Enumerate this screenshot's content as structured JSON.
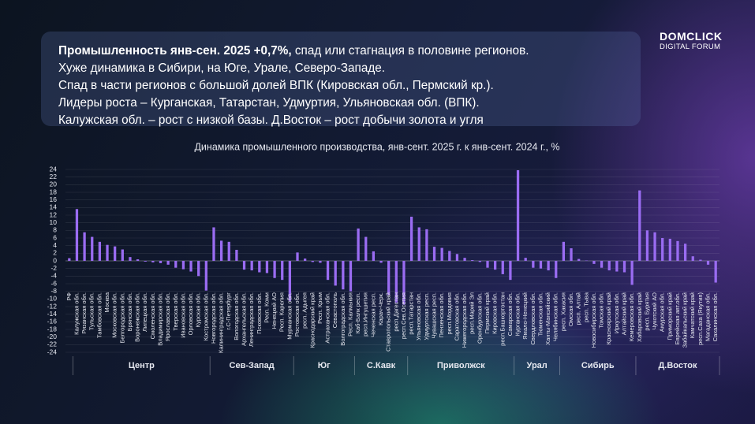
{
  "header": {
    "lead": "Промышленность янв-сен. 2025 +0,7%,",
    "lead_rest": "спад или стагнация в половине регионов.",
    "lines": [
      "Хуже динамика в Сибири, на Юге, Урале, Северо-Западе.",
      "Спад в части регионов с большой долей ВПК (Кировская обл., Пермский кр.).",
      "Лидеры роста – Курганская, Татарстан, Удмуртия, Ульяновская обл. (ВПК).",
      "Калужская обл. – рост с низкой базы. Д.Восток – рост добычи золота и угля"
    ]
  },
  "logo": {
    "brand": "DOMCLICK",
    "event": "DIGITAL FORUM"
  },
  "chart_data": {
    "type": "bar",
    "title": "Динамика промышленного производства, янв-сент. 2025 г. к янв-сент. 2024 г., %",
    "color": "#9a6cf2",
    "ylim": [
      -24,
      24
    ],
    "yticks": [
      -24,
      -22,
      -20,
      -18,
      -16,
      -14,
      -12,
      -10,
      -8,
      -6,
      -4,
      -2,
      0,
      2,
      4,
      6,
      8,
      10,
      12,
      14,
      16,
      18,
      20,
      22,
      24
    ],
    "grid": true,
    "categories": [
      "РФ"
    ],
    "values": [
      0.7
    ],
    "groups": [
      {
        "name": "Центр",
        "categories": [
          "Калужская обл.",
          "Рязанская обл.",
          "Тульская обл.",
          "Тамбовская обл.",
          "Москва",
          "Московская обл.",
          "Белгородская обл.",
          "Брянская обл.",
          "Воронежская обл.",
          "Липецкая обл.",
          "Смоленская обл.",
          "Владимирская обл.",
          "Ярославская обл.",
          "Тверская обл.",
          "Ивановская обл.",
          "Орловская обл.",
          "Курская обл.",
          "Костромская обл."
        ],
        "values": [
          13.6,
          7.5,
          6.3,
          5.0,
          4.2,
          3.8,
          3.0,
          1.0,
          0.4,
          -0.2,
          -0.4,
          -0.6,
          -1.0,
          -1.8,
          -2.2,
          -2.8,
          -4.0,
          -7.8
        ]
      },
      {
        "name": "Сев-Запад",
        "categories": [
          "Новгородская обл.",
          "Калининградская обл.",
          "г.С-Петербург",
          "Вологодская обл.",
          "Архангельская обл.",
          "Ленинградская обл.",
          "Псковская обл.",
          "Респ. Коми",
          "Ненецкий АО",
          "Респ. Карелия",
          "Мурманская обл."
        ],
        "values": [
          8.8,
          5.3,
          5.0,
          2.9,
          -2.3,
          -2.5,
          -3.0,
          -3.2,
          -4.5,
          -5.0,
          -10.5
        ]
      },
      {
        "name": "Юг",
        "categories": [
          "Ростовская обл.",
          "респ. Адыгея",
          "Краснодарский край",
          "Респ. Крым",
          "Астраханская обл.",
          "Севастополь",
          "Волгоградская обл.",
          "Респ. Калмыкия"
        ],
        "values": [
          2.2,
          0.6,
          -0.3,
          -0.5,
          -5.0,
          -6.5,
          -7.5,
          -8.0
        ]
      },
      {
        "name": "С.Кавк",
        "categories": [
          "Каб-Балк респ.",
          "респ.Ингушетия",
          "Чеченская респ.",
          "Карач-Черк.",
          "Ставропольский край",
          "респ.Дагестан",
          "респ.Сев.Осетия"
        ],
        "values": [
          8.5,
          6.3,
          2.5,
          -0.5,
          -9.0,
          -11.0,
          -11.5
        ]
      },
      {
        "name": "Приволжск",
        "categories": [
          "респ.Татарстан",
          "Ульяновская обл.",
          "Удмуртская респ.",
          "Чувашская респ.",
          "Пензенская обл.",
          "респ.Мордовия",
          "Саратовская обл.",
          "Нижегородская обл.",
          "респ.Марий Эл",
          "Оренбургская обл.",
          "Пермский край",
          "Кировская обл.",
          "респ.Башкортостан",
          "Самарская обл."
        ],
        "values": [
          11.6,
          8.8,
          8.3,
          3.7,
          3.4,
          2.6,
          1.8,
          0.8,
          0.2,
          -0.3,
          -1.8,
          -2.3,
          -3.5,
          -5.0
        ]
      },
      {
        "name": "Урал",
        "categories": [
          "Курганская обл.",
          "Ямало-Ненецкий",
          "Свердловская обл.",
          "Тюменская обл.",
          "Ханты-Мансийский",
          "Челябинская обл."
        ],
        "values": [
          23.8,
          0.8,
          -1.8,
          -2.0,
          -2.5,
          -4.5
        ]
      },
      {
        "name": "Сибирь",
        "categories": [
          "респ. Хакасия",
          "Омская обл.",
          "респ. Алтай",
          "респ. Тыва",
          "Новосибирская обл.",
          "Томская обл.",
          "Красноярский край",
          "Иркутская обл.",
          "Алтайский край",
          "Кемеровская обл."
        ],
        "values": [
          5.0,
          3.3,
          0.5,
          0.1,
          -0.8,
          -1.8,
          -2.5,
          -2.8,
          -3.0,
          -6.3
        ]
      },
      {
        "name": "Д.Восток",
        "categories": [
          "Хабаровский край",
          "респ. Бурятия",
          "Чукотский АО",
          "Амурская обл.",
          "Приморский край",
          "Еврейская авт.обл.",
          "Забайкальский край",
          "Камчатский край",
          "респ.Саха (Якутия)",
          "Магаданская обл.",
          "Сахалинская обл."
        ],
        "values": [
          18.5,
          8.0,
          7.5,
          6.0,
          5.8,
          5.2,
          4.5,
          1.2,
          0.3,
          -1.0,
          -5.7
        ]
      }
    ]
  }
}
